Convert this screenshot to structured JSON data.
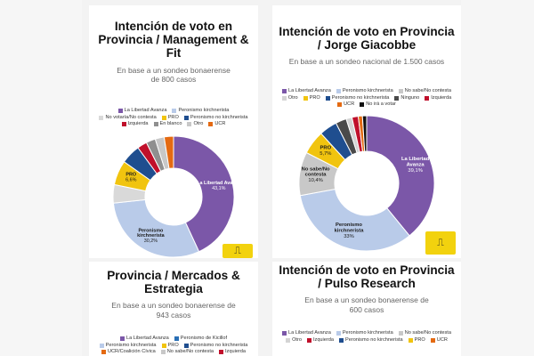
{
  "colors": {
    "lla": "#7b57a8",
    "kirchnerista": "#b9cbe9",
    "pro": "#f1c40f",
    "no_kirchnerista": "#1f4e8f",
    "izquierda": "#c0102b",
    "blanco": "#8f8f8f",
    "otro": "#d4d4d4",
    "ucr": "#e46a12",
    "ninguno": "#4a4a4a",
    "no_ira": "#111111",
    "no_sabe": "#c8c8c8"
  },
  "cards": [
    {
      "title": "Intención de voto en Provincia / Management & Fit",
      "subtitle": "En base a un sondeo bonaerense de 800 casos",
      "legend": [
        {
          "label": "La Libertad Avanza",
          "color": "#7b57a8"
        },
        {
          "label": "Peronismo kirchnerista",
          "color": "#b9cbe9"
        },
        {
          "label": "No votaría/No contesta",
          "color": "#d9d9d9"
        },
        {
          "label": "PRO",
          "color": "#f1c40f"
        },
        {
          "label": "Peronismo no kirchnerista",
          "color": "#1f4e8f"
        },
        {
          "label": "Izquierda",
          "color": "#c0102b"
        },
        {
          "label": "En blanco",
          "color": "#8f8f8f"
        },
        {
          "label": "Otro",
          "color": "#c8c8c8"
        },
        {
          "label": "UCR",
          "color": "#e46a12"
        }
      ],
      "chart_data": {
        "type": "pie",
        "title": "Intención de voto en Provincia / Management & Fit",
        "slices": [
          {
            "label": "La Libertad Avanza",
            "value": 43.1,
            "display": "La Libertad Avanza\n43,1%",
            "color": "#7b57a8"
          },
          {
            "label": "Peronismo kirchnerista",
            "value": 30.2,
            "display": "Peronismo\nkirchnerista\n30,2%",
            "color": "#b9cbe9"
          },
          {
            "label": "No votaría/No contesta",
            "value": 4.9,
            "display": "",
            "color": "#d9d9d9"
          },
          {
            "label": "PRO",
            "value": 6.6,
            "display": "PRO\n6,6%",
            "color": "#f1c40f"
          },
          {
            "label": "Peronismo no kirchnerista",
            "value": 5.2,
            "display": "",
            "color": "#1f4e8f"
          },
          {
            "label": "Izquierda",
            "value": 2.6,
            "display": "",
            "color": "#c0102b"
          },
          {
            "label": "En blanco",
            "value": 2.5,
            "display": "",
            "color": "#8f8f8f"
          },
          {
            "label": "Otro",
            "value": 2.4,
            "display": "",
            "color": "#c8c8c8"
          },
          {
            "label": "UCR",
            "value": 2.5,
            "display": "",
            "color": "#e46a12"
          }
        ]
      }
    },
    {
      "title": "Intención de voto en Provincia / Jorge Giacobbe",
      "subtitle": "En base a un sondeo nacional de 1.500 casos",
      "legend": [
        {
          "label": "La Libertad Avanza",
          "color": "#7b57a8"
        },
        {
          "label": "Peronismo kirchnerista",
          "color": "#b9cbe9"
        },
        {
          "label": "No sabe/No contesta",
          "color": "#c8c8c8"
        },
        {
          "label": "Otro",
          "color": "#d4d4d4"
        },
        {
          "label": "PRO",
          "color": "#f1c40f"
        },
        {
          "label": "Peronismo no kirchnerista",
          "color": "#1f4e8f"
        },
        {
          "label": "Ninguno",
          "color": "#4a4a4a"
        },
        {
          "label": "Izquierda",
          "color": "#c0102b"
        },
        {
          "label": "UCR",
          "color": "#e46a12"
        },
        {
          "label": "No irá a votar",
          "color": "#111111"
        }
      ],
      "chart_data": {
        "type": "pie",
        "title": "Intención de voto en Provincia / Jorge Giacobbe",
        "slices": [
          {
            "label": "La Libertad Avanza",
            "value": 39.1,
            "display": "La Libertad\nAvanza\n39,1%",
            "color": "#7b57a8"
          },
          {
            "label": "Peronismo kirchnerista",
            "value": 33.0,
            "display": "Peronismo\nkirchnerista\n33%",
            "color": "#b9cbe9"
          },
          {
            "label": "No sabe/No contesta",
            "value": 10.4,
            "display": "No sabe/No\ncontesta\n10,4%",
            "color": "#c8c8c8"
          },
          {
            "label": "PRO",
            "value": 5.7,
            "display": "PRO\n5,7%",
            "color": "#f1c40f"
          },
          {
            "label": "Peronismo no kirchnerista",
            "value": 4.3,
            "display": "",
            "color": "#1f4e8f"
          },
          {
            "label": "Ninguno",
            "value": 2.6,
            "display": "",
            "color": "#4a4a4a"
          },
          {
            "label": "Otro",
            "value": 1.4,
            "display": "",
            "color": "#d4d4d4"
          },
          {
            "label": "Izquierda",
            "value": 1.5,
            "display": "",
            "color": "#c0102b"
          },
          {
            "label": "UCR",
            "value": 1.0,
            "display": "",
            "color": "#e46a12"
          },
          {
            "label": "No irá a votar",
            "value": 1.0,
            "display": "",
            "color": "#111111"
          }
        ]
      }
    },
    {
      "title": "Provincia / Mercados & Estrategia",
      "subtitle": "En base a un sondeo bonaerense de 943 casos",
      "legend": [
        {
          "label": "La Libertad Avanza",
          "color": "#7b57a8"
        },
        {
          "label": "Peronismo de Kicillof",
          "color": "#2a6fb5"
        },
        {
          "label": "Peronismo kirchnerista",
          "color": "#b9cbe9"
        },
        {
          "label": "PRO",
          "color": "#f1c40f"
        },
        {
          "label": "Peronismo no kirchnerista",
          "color": "#1f4e8f"
        },
        {
          "label": "UCR/Coalición Cívica",
          "color": "#e46a12"
        },
        {
          "label": "No sabe/No contesta",
          "color": "#c8c8c8"
        },
        {
          "label": "Izquierda",
          "color": "#c0102b"
        }
      ]
    },
    {
      "title": "Intención de voto en Provincia / Pulso Research",
      "subtitle": "En base a un sondeo bonaerense de 600 casos",
      "legend": [
        {
          "label": "La Libertad Avanza",
          "color": "#7b57a8"
        },
        {
          "label": "Peronismo kirchnerista",
          "color": "#b9cbe9"
        },
        {
          "label": "No sabe/No contesta",
          "color": "#c8c8c8"
        },
        {
          "label": "Otro",
          "color": "#d4d4d4"
        },
        {
          "label": "Izquierda",
          "color": "#c0102b"
        },
        {
          "label": "Peronismo no kirchnerista",
          "color": "#1f4e8f"
        },
        {
          "label": "PRO",
          "color": "#f1c40f"
        },
        {
          "label": "UCR",
          "color": "#e46a12"
        }
      ]
    }
  ],
  "badges": {
    "icon_left": "flexo-icon",
    "icon_right": "flexo-icon"
  }
}
